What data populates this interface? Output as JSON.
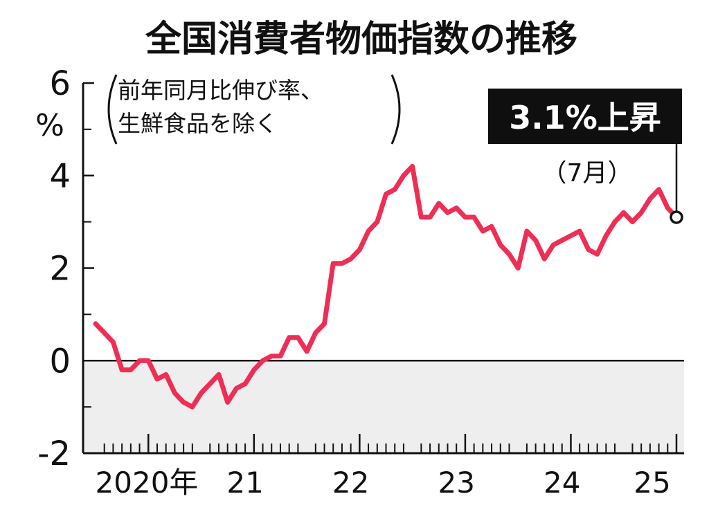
{
  "chart_data": {
    "type": "line",
    "title": "全国消費者物価指数の推移",
    "subtitle_lines": [
      "前年同月比伸び率、",
      "生鮮食品を除く"
    ],
    "ylabel": "%",
    "ylim": [
      -2,
      6
    ],
    "y_ticks": [
      {
        "value": 6,
        "label": "6"
      },
      {
        "value": 4,
        "label": "4"
      },
      {
        "value": 2,
        "label": "2"
      },
      {
        "value": 0,
        "label": "0"
      },
      {
        "value": -2,
        "label": "-2"
      }
    ],
    "y_minor_ticks": [
      5,
      3,
      1,
      -1
    ],
    "x_labels": [
      {
        "year": 2020,
        "label": "2020年"
      },
      {
        "year": 2021,
        "label": "21"
      },
      {
        "year": 2022,
        "label": "22"
      },
      {
        "year": 2023,
        "label": "23"
      },
      {
        "year": 2024,
        "label": "24"
      },
      {
        "year": 2025,
        "label": "25"
      }
    ],
    "start": "2020-01",
    "end": "2025-07",
    "negative_region_shaded": true,
    "series": [
      {
        "color": "#ee2e55",
        "x": [
          "2020-01",
          "2020-02",
          "2020-03",
          "2020-04",
          "2020-05",
          "2020-06",
          "2020-07",
          "2020-08",
          "2020-09",
          "2020-10",
          "2020-11",
          "2020-12",
          "2021-01",
          "2021-02",
          "2021-03",
          "2021-04",
          "2021-05",
          "2021-06",
          "2021-07",
          "2021-08",
          "2021-09",
          "2021-10",
          "2021-11",
          "2021-12",
          "2022-01",
          "2022-02",
          "2022-03",
          "2022-04",
          "2022-05",
          "2022-06",
          "2022-07",
          "2022-08",
          "2022-09",
          "2022-10",
          "2022-11",
          "2022-12",
          "2023-01",
          "2023-02",
          "2023-03",
          "2023-04",
          "2023-05",
          "2023-06",
          "2023-07",
          "2023-08",
          "2023-09",
          "2023-10",
          "2023-11",
          "2023-12",
          "2024-01",
          "2024-02",
          "2024-03",
          "2024-04",
          "2024-05",
          "2024-06",
          "2024-07",
          "2024-08",
          "2024-09",
          "2024-10",
          "2024-11",
          "2024-12",
          "2025-01",
          "2025-02",
          "2025-03",
          "2025-04",
          "2025-05",
          "2025-06",
          "2025-07"
        ],
        "y": [
          0.8,
          0.6,
          0.4,
          -0.2,
          -0.2,
          0.0,
          0.0,
          -0.4,
          -0.3,
          -0.7,
          -0.9,
          -1.0,
          -0.7,
          -0.5,
          -0.3,
          -0.9,
          -0.6,
          -0.5,
          -0.2,
          0.0,
          0.1,
          0.1,
          0.5,
          0.5,
          0.2,
          0.6,
          0.8,
          2.1,
          2.1,
          2.2,
          2.4,
          2.8,
          3.0,
          3.6,
          3.7,
          4.0,
          4.2,
          3.1,
          3.1,
          3.4,
          3.2,
          3.3,
          3.1,
          3.1,
          2.8,
          2.9,
          2.5,
          2.3,
          2.0,
          2.8,
          2.6,
          2.2,
          2.5,
          2.6,
          2.7,
          2.8,
          2.4,
          2.3,
          2.7,
          3.0,
          3.2,
          3.0,
          3.2,
          3.5,
          3.7,
          3.3,
          3.1
        ]
      }
    ],
    "callout": {
      "label": "3.1%上昇",
      "sublabel": "（7月）",
      "value": 3.1,
      "x": "2025-07"
    }
  }
}
